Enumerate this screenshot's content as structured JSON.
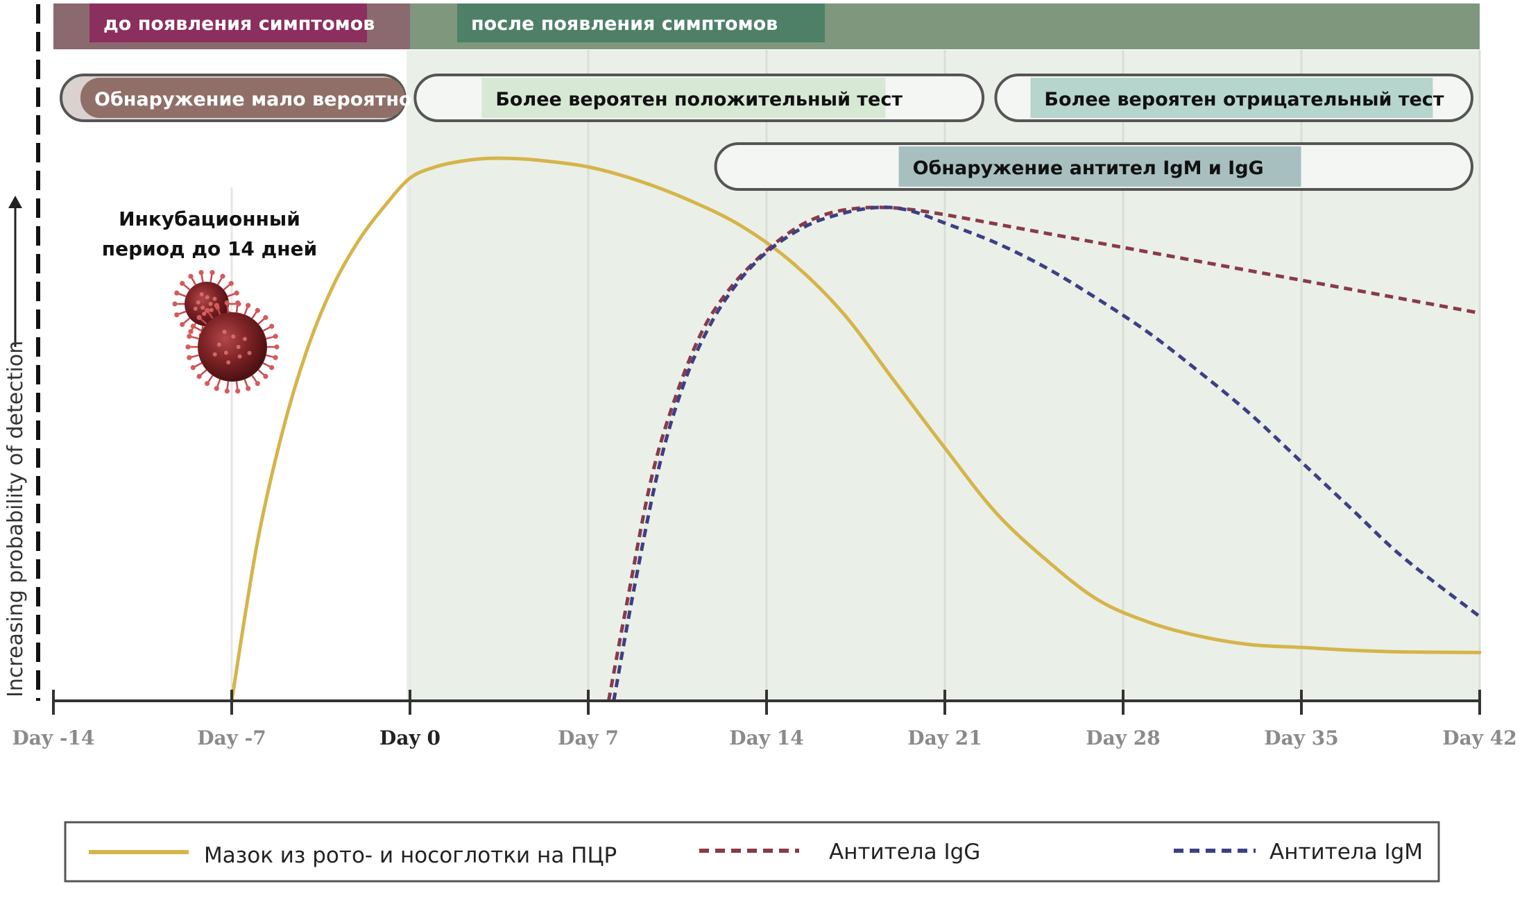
{
  "chart_data": {
    "type": "line",
    "title": "",
    "xlabel": "",
    "ylabel": "Increasing probability of detection",
    "x_ticks": [
      "Day -14",
      "Day -7",
      "Day 0",
      "Day 7",
      "Day 14",
      "Day 21",
      "Day 28",
      "Day 35",
      "Day 42"
    ],
    "x_tick_values": [
      -14,
      -7,
      0,
      7,
      14,
      21,
      28,
      35,
      42
    ],
    "xlim": [
      -14,
      42
    ],
    "ylim": [
      0,
      100
    ],
    "grid": true,
    "legend_position": "bottom",
    "phases": [
      {
        "label": "до появления симптомов",
        "from": -14,
        "to": 0,
        "color": "#8a6a6e",
        "label_color": "#8b2f5e"
      },
      {
        "label": "после появления симптомов",
        "from": 0,
        "to": 42,
        "color": "#7f977d",
        "label_color": "#4e8068"
      }
    ],
    "bands": [
      {
        "label": "Обнаружение мало вероятно",
        "from": -13.7,
        "to": -0.2,
        "color": "#8f6f68",
        "text_color": "#ffffff"
      },
      {
        "label": "Более вероятен положительный тест",
        "from": 0.2,
        "to": 22.5,
        "color": "#d7e8d4",
        "text_color": "#111111"
      },
      {
        "label": "Более вероятен отрицательный тест",
        "from": 23.0,
        "to": 41.7,
        "color": "#b6d5cc",
        "text_color": "#111111"
      },
      {
        "label": "Обнаружение антител IgM и IgG",
        "from": 12.0,
        "to": 41.7,
        "color": "#a8bfbf",
        "text_color": "#111111"
      }
    ],
    "annotation": {
      "line1": "Инкубационный",
      "line2": "период до 14 дней"
    },
    "series": [
      {
        "name": "Мазок из рото- и носоглотки на ПЦР",
        "color": "#d6b44a",
        "style": "solid",
        "x": [
          -7,
          -6,
          -5,
          -4,
          -3,
          -2,
          -1,
          0,
          1,
          2,
          3,
          4,
          5,
          7,
          9,
          11,
          13,
          15,
          17,
          19,
          21,
          23,
          25,
          27,
          29,
          31,
          33,
          35,
          37,
          39,
          42
        ],
        "y": [
          0,
          28,
          48,
          63,
          74,
          82,
          88,
          93,
          95,
          96,
          96.5,
          96.5,
          96.2,
          95,
          92.5,
          89,
          84.5,
          78,
          69,
          57,
          45,
          33.5,
          25,
          18,
          14,
          11.5,
          10,
          9.5,
          9,
          8.7,
          8.6
        ]
      },
      {
        "name": "Антитела IgG",
        "color": "#8a3a48",
        "style": "dashed",
        "x": [
          7.8,
          8.5,
          9.5,
          10.5,
          11.5,
          12.5,
          13.5,
          14.5,
          15.5,
          16.5,
          17.5,
          18.5,
          19.5,
          21,
          24,
          27,
          30,
          33,
          36,
          39,
          42
        ],
        "y": [
          0,
          17,
          40,
          55,
          66,
          73,
          78,
          82,
          85,
          86.8,
          87.6,
          87.8,
          87.5,
          86.5,
          84,
          81.5,
          79,
          76.5,
          74,
          71.5,
          69
        ]
      },
      {
        "name": "Антитела IgM",
        "color": "#3d3f86",
        "style": "dashed",
        "x": [
          8,
          8.8,
          9.8,
          10.8,
          11.8,
          12.8,
          13.8,
          14.8,
          15.8,
          16.8,
          17.8,
          18.8,
          19.8,
          21,
          23,
          25,
          27,
          29,
          31,
          33,
          35,
          37,
          39,
          42
        ],
        "y": [
          0,
          20,
          42,
          57,
          67,
          74,
          79,
          82.5,
          85,
          86.5,
          87.5,
          87.8,
          87,
          85,
          81.5,
          77,
          71.5,
          65.5,
          58.5,
          51,
          42.5,
          34,
          25.5,
          15
        ]
      }
    ]
  }
}
